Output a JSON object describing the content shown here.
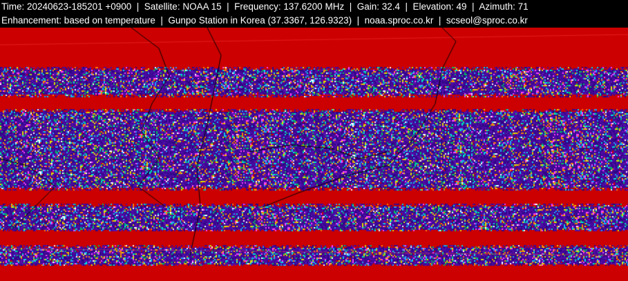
{
  "header": {
    "line1": "Time: 20240623-185201 +0900  |  Satellite: NOAA 15  |  Frequency: 137.6200 MHz  |  Gain: 32.4  |  Elevation: 49  |  Azimuth: 71",
    "line2": "Enhancement: based on temperature  |  Gunpo Station in Korea (37.3367, 126.9323)  |  noaa.sproc.co.kr  |  scseol@sproc.co.kr"
  },
  "image": {
    "colors": {
      "background": "#cc0000",
      "noise_base": "#4a0aa0",
      "coastline": "#000000"
    }
  }
}
